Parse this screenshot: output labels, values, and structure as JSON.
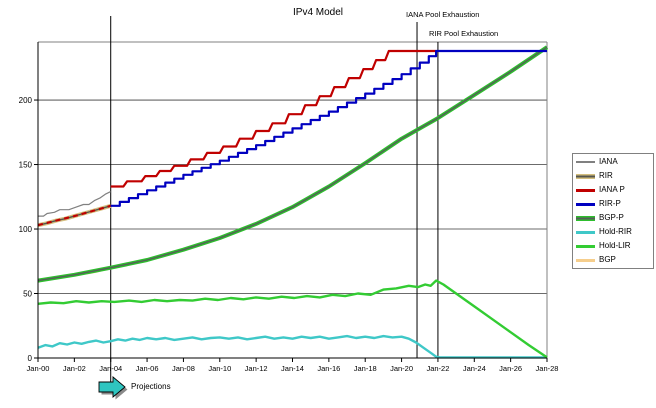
{
  "chart_data": {
    "type": "line",
    "title": "IPv4 Model",
    "xlabel": "",
    "ylabel": "",
    "grid": "horizontal",
    "legend_position": "right",
    "xlim": [
      2000,
      2028
    ],
    "ylim": [
      0,
      245
    ],
    "y_ticks": [
      0,
      50,
      100,
      150,
      200
    ],
    "x_ticks": [
      {
        "year": 2000,
        "label": "Jan-00"
      },
      {
        "year": 2002,
        "label": "Jan-02"
      },
      {
        "year": 2004,
        "label": "Jan-04"
      },
      {
        "year": 2006,
        "label": "Jan-06"
      },
      {
        "year": 2008,
        "label": "Jan-08"
      },
      {
        "year": 2010,
        "label": "Jan-10"
      },
      {
        "year": 2012,
        "label": "Jan-12"
      },
      {
        "year": 2014,
        "label": "Jan-14"
      },
      {
        "year": 2016,
        "label": "Jan-16"
      },
      {
        "year": 2018,
        "label": "Jan-18"
      },
      {
        "year": 2020,
        "label": "Jan-20"
      },
      {
        "year": 2022,
        "label": "Jan-22"
      },
      {
        "year": 2024,
        "label": "Jan-24"
      },
      {
        "year": 2026,
        "label": "Jan-26"
      },
      {
        "year": 2028,
        "label": "Jan-28"
      }
    ],
    "annotations": {
      "iana_pool": "IANA Pool Exhaustion",
      "rir_pool": "RIR Pool Exhaustion",
      "projections": "Projections"
    },
    "vlines": [
      {
        "name": "projections-start",
        "year": 2004
      },
      {
        "name": "iana-pool-exhaustion",
        "year": 2020.85
      },
      {
        "name": "rir-pool-exhaustion",
        "year": 2022
      }
    ],
    "series": [
      {
        "name": "IANA",
        "z": 1,
        "color": "#808080",
        "width": 1.2,
        "points": [
          [
            2000,
            110
          ],
          [
            2000.3,
            110
          ],
          [
            2000.5,
            112
          ],
          [
            2000.9,
            113
          ],
          [
            2001.2,
            115
          ],
          [
            2001.7,
            115
          ],
          [
            2002.1,
            117
          ],
          [
            2002.5,
            119
          ],
          [
            2002.8,
            119
          ],
          [
            2003.1,
            122
          ],
          [
            2003.4,
            124
          ],
          [
            2003.7,
            127
          ],
          [
            2004,
            129
          ]
        ]
      },
      {
        "name": "RIR",
        "z": 2,
        "two_tone": {
          "fringe": "#D4BE7E",
          "core": "#55564E"
        },
        "width": 4,
        "points": [
          [
            2000,
            103
          ],
          [
            2000.5,
            104.5
          ],
          [
            2001,
            106.5
          ],
          [
            2001.5,
            108
          ],
          [
            2002,
            110
          ],
          [
            2002.5,
            112
          ],
          [
            2003,
            114
          ],
          [
            2003.5,
            116
          ],
          [
            2004,
            118
          ]
        ]
      },
      {
        "name": "IANA P",
        "z": 5,
        "color": "#C00000",
        "width": 2.2,
        "fit_dash": "5,4",
        "fit_points": [
          [
            2000,
            103
          ],
          [
            2001,
            106.5
          ],
          [
            2002,
            110
          ],
          [
            2003,
            114
          ],
          [
            2004,
            118
          ]
        ],
        "points": [
          [
            2004,
            133
          ],
          [
            2004.7,
            133
          ],
          [
            2004.9,
            137
          ],
          [
            2005.7,
            137
          ],
          [
            2005.9,
            141
          ],
          [
            2006.5,
            141
          ],
          [
            2006.7,
            145
          ],
          [
            2007.3,
            145
          ],
          [
            2007.5,
            149
          ],
          [
            2008.2,
            149
          ],
          [
            2008.4,
            154
          ],
          [
            2009.1,
            154
          ],
          [
            2009.3,
            159
          ],
          [
            2010,
            159
          ],
          [
            2010.2,
            164
          ],
          [
            2010.9,
            164
          ],
          [
            2011.1,
            170
          ],
          [
            2011.8,
            170
          ],
          [
            2012,
            176
          ],
          [
            2012.7,
            176
          ],
          [
            2012.9,
            182
          ],
          [
            2013.6,
            182
          ],
          [
            2013.8,
            189
          ],
          [
            2014.5,
            189
          ],
          [
            2014.7,
            196
          ],
          [
            2015.3,
            196
          ],
          [
            2015.5,
            203
          ],
          [
            2016.1,
            203
          ],
          [
            2016.3,
            210
          ],
          [
            2016.9,
            210
          ],
          [
            2017.1,
            217
          ],
          [
            2017.7,
            217
          ],
          [
            2017.9,
            224
          ],
          [
            2018.4,
            224
          ],
          [
            2018.6,
            231
          ],
          [
            2019.1,
            231
          ],
          [
            2019.3,
            238
          ],
          [
            2021.9,
            238
          ]
        ]
      },
      {
        "name": "RIR-P",
        "z": 6,
        "color": "#0000C0",
        "width": 2.2,
        "step_interval": 0.5,
        "points": [
          [
            2004,
            118
          ],
          [
            2006,
            130
          ],
          [
            2008,
            142
          ],
          [
            2010,
            153
          ],
          [
            2012,
            165
          ],
          [
            2014,
            178
          ],
          [
            2016,
            191
          ],
          [
            2018,
            205
          ],
          [
            2020,
            220
          ],
          [
            2021,
            229
          ],
          [
            2021.9,
            238
          ],
          [
            2028,
            238
          ]
        ]
      },
      {
        "name": "BGP-P",
        "z": 4,
        "two_tone": {
          "fringe": "#2EBE2E",
          "core": "#555F58"
        },
        "width": 4,
        "points": [
          [
            2000,
            60
          ],
          [
            2002,
            64.5
          ],
          [
            2004,
            70
          ],
          [
            2006,
            76
          ],
          [
            2008,
            84
          ],
          [
            2010,
            93
          ],
          [
            2012,
            104
          ],
          [
            2014,
            117
          ],
          [
            2016,
            133
          ],
          [
            2018,
            151
          ],
          [
            2020,
            170
          ],
          [
            2022,
            186
          ],
          [
            2024,
            204
          ],
          [
            2026,
            222
          ],
          [
            2028,
            241
          ]
        ]
      },
      {
        "name": "Hold-RIR",
        "z": 7,
        "color": "#3FC8C8",
        "width": 2.4,
        "points": [
          [
            2000,
            8
          ],
          [
            2000.4,
            10
          ],
          [
            2000.8,
            9
          ],
          [
            2001.2,
            11.5
          ],
          [
            2001.6,
            10.5
          ],
          [
            2002,
            12
          ],
          [
            2002.4,
            11
          ],
          [
            2002.8,
            12.5
          ],
          [
            2003.2,
            13.5
          ],
          [
            2003.6,
            12
          ],
          [
            2004,
            13
          ],
          [
            2004.4,
            14.5
          ],
          [
            2004.8,
            13.5
          ],
          [
            2005.2,
            15
          ],
          [
            2005.6,
            14
          ],
          [
            2006,
            15.5
          ],
          [
            2006.5,
            14.5
          ],
          [
            2007,
            15.5
          ],
          [
            2007.5,
            14
          ],
          [
            2008,
            15
          ],
          [
            2008.5,
            16
          ],
          [
            2009,
            14.5
          ],
          [
            2009.5,
            15.5
          ],
          [
            2010,
            16
          ],
          [
            2010.5,
            15
          ],
          [
            2011,
            16
          ],
          [
            2011.5,
            14.5
          ],
          [
            2012,
            15.5
          ],
          [
            2012.5,
            16.5
          ],
          [
            2013,
            15
          ],
          [
            2013.5,
            16
          ],
          [
            2014,
            15
          ],
          [
            2014.5,
            16.5
          ],
          [
            2015,
            15.5
          ],
          [
            2015.5,
            16.5
          ],
          [
            2016,
            15
          ],
          [
            2016.5,
            16
          ],
          [
            2017,
            17
          ],
          [
            2017.5,
            15.5
          ],
          [
            2018,
            16.5
          ],
          [
            2018.5,
            15.5
          ],
          [
            2019,
            17
          ],
          [
            2019.5,
            16
          ],
          [
            2020,
            16.5
          ],
          [
            2020.4,
            15
          ],
          [
            2020.8,
            12
          ],
          [
            2021.2,
            8
          ],
          [
            2021.6,
            4
          ],
          [
            2021.9,
            1
          ],
          [
            2022.1,
            0.5
          ],
          [
            2028,
            0.5
          ]
        ]
      },
      {
        "name": "Hold-LIR",
        "z": 8,
        "color": "#33CC33",
        "width": 2.4,
        "points": [
          [
            2000,
            42
          ],
          [
            2000.7,
            43
          ],
          [
            2001.4,
            42.5
          ],
          [
            2002.1,
            44
          ],
          [
            2002.8,
            43
          ],
          [
            2003.5,
            44
          ],
          [
            2004.2,
            43.5
          ],
          [
            2005,
            44.5
          ],
          [
            2005.7,
            43.5
          ],
          [
            2006.4,
            45
          ],
          [
            2007.1,
            44
          ],
          [
            2007.8,
            45
          ],
          [
            2008.5,
            44.5
          ],
          [
            2009.2,
            46
          ],
          [
            2009.9,
            45
          ],
          [
            2010.6,
            46.5
          ],
          [
            2011.3,
            45.5
          ],
          [
            2012,
            47
          ],
          [
            2012.7,
            46
          ],
          [
            2013.4,
            47.5
          ],
          [
            2014.1,
            46.5
          ],
          [
            2014.8,
            48
          ],
          [
            2015.5,
            47
          ],
          [
            2016.2,
            49
          ],
          [
            2016.9,
            48
          ],
          [
            2017.6,
            50
          ],
          [
            2018.3,
            49
          ],
          [
            2019,
            53
          ],
          [
            2019.7,
            54
          ],
          [
            2020.4,
            56
          ],
          [
            2020.9,
            55
          ],
          [
            2021.3,
            57
          ],
          [
            2021.6,
            56
          ],
          [
            2021.9,
            60
          ],
          [
            2022.3,
            57
          ],
          [
            2023,
            50
          ],
          [
            2024,
            40
          ],
          [
            2025,
            30
          ],
          [
            2026,
            20
          ],
          [
            2027,
            10
          ],
          [
            2028,
            0.5
          ]
        ]
      },
      {
        "name": "BGP",
        "z": 3,
        "color": "#F6CE8C",
        "width": 2.4,
        "points": [
          [
            2000,
            60
          ],
          [
            2000.4,
            61
          ],
          [
            2000.8,
            61.5
          ],
          [
            2001.2,
            63
          ],
          [
            2001.6,
            63.5
          ],
          [
            2002,
            64.5
          ],
          [
            2002.4,
            65.5
          ],
          [
            2002.8,
            66
          ],
          [
            2003.2,
            67
          ],
          [
            2003.6,
            68.5
          ],
          [
            2004,
            69.5
          ]
        ]
      }
    ]
  }
}
